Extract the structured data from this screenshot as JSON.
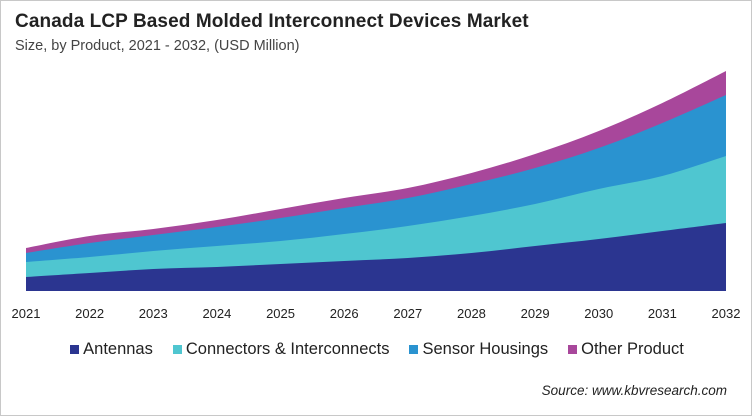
{
  "chart_data": {
    "type": "area",
    "stacked": true,
    "title": "Canada LCP Based Molded Interconnect Devices Market",
    "subtitle": "Size, by Product, 2021 - 2032, (USD Million)",
    "xlabel": "",
    "ylabel": "",
    "categories": [
      "2021",
      "2022",
      "2023",
      "2024",
      "2025",
      "2026",
      "2027",
      "2028",
      "2029",
      "2030",
      "2031",
      "2032"
    ],
    "series": [
      {
        "name": "Antennas",
        "color": "#2b3590",
        "values": [
          14,
          18,
          22,
          24,
          27,
          30,
          33,
          38,
          45,
          52,
          60,
          68
        ]
      },
      {
        "name": "Connectors & Interconnects",
        "color": "#4fc6d0",
        "values": [
          15,
          16,
          18,
          21,
          23,
          27,
          32,
          37,
          42,
          50,
          55,
          67
        ]
      },
      {
        "name": "Sensor Housings",
        "color": "#2a93d0",
        "values": [
          9,
          14,
          16,
          19,
          23,
          26,
          28,
          32,
          36,
          41,
          53,
          61
        ]
      },
      {
        "name": "Other Product",
        "color": "#a8479b",
        "values": [
          5,
          7,
          6,
          7,
          9,
          10,
          10,
          11,
          14,
          17,
          20,
          24
        ]
      }
    ],
    "ylim": [
      0,
      220
    ],
    "grid": false,
    "y_axis_visible": false,
    "legend_position": "bottom"
  },
  "source": "Source: www.kbvresearch.com"
}
